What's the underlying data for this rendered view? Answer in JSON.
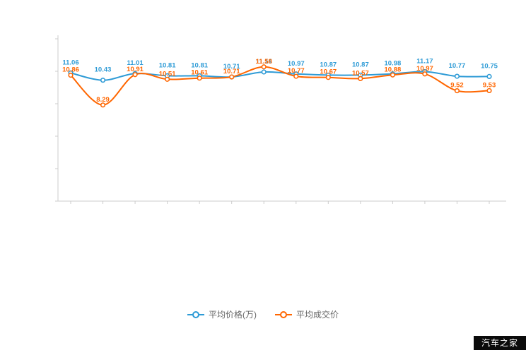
{
  "watermark": {
    "text": "汽车之家"
  },
  "legend": {
    "items": [
      {
        "label": "平均价格(万)",
        "color": "#2e9bd6"
      },
      {
        "label": "平均成交价",
        "color": "#ff6600"
      }
    ]
  },
  "chart_data": {
    "type": "line",
    "title": "",
    "xlabel": "",
    "ylabel": "",
    "ylim": [
      0,
      14
    ],
    "grid": false,
    "legend_position": "bottom",
    "x": [
      1,
      2,
      3,
      4,
      5,
      6,
      7,
      8,
      9,
      10,
      11,
      12,
      13,
      14
    ],
    "series": [
      {
        "name": "平均价格(万)",
        "color": "#2e9bd6",
        "values": [
          11.06,
          10.43,
          11.01,
          10.81,
          10.81,
          10.71,
          11.14,
          10.97,
          10.87,
          10.87,
          10.98,
          11.17,
          10.77,
          10.75
        ]
      },
      {
        "name": "平均成交价",
        "color": "#ff6600",
        "values": [
          10.86,
          8.29,
          10.91,
          10.51,
          10.61,
          10.71,
          11.58,
          10.77,
          10.67,
          10.57,
          10.88,
          10.97,
          9.52,
          9.53
        ]
      }
    ]
  }
}
